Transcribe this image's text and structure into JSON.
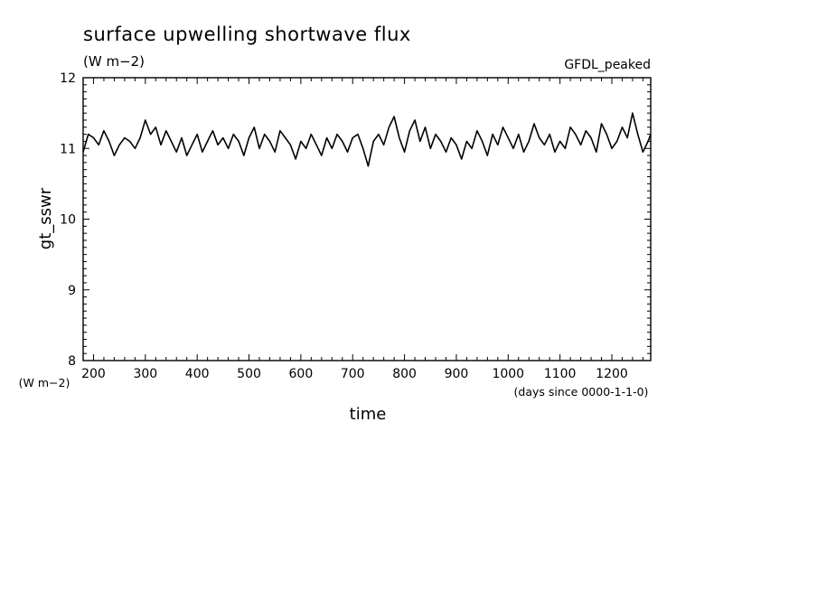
{
  "chart_data": {
    "type": "line",
    "title": "surface upwelling shortwave flux",
    "units": "(W m−2)",
    "dataset": "GFDL_peaked",
    "xlabel": "time",
    "xunits": "(days since 0000-1-1-0)",
    "ylabel": "gt_sswr",
    "yunits": "(W m−2)",
    "xlim": [
      180,
      1275
    ],
    "ylim": [
      8,
      12
    ],
    "x_ticks": [
      200,
      300,
      400,
      500,
      600,
      700,
      800,
      900,
      1000,
      1100,
      1200
    ],
    "y_ticks": [
      8,
      9,
      10,
      11,
      12
    ],
    "grid": false,
    "series": [
      {
        "x": [
          180,
          190,
          200,
          210,
          220,
          230,
          240,
          250,
          260,
          270,
          280,
          290,
          300,
          310,
          320,
          330,
          340,
          350,
          360,
          370,
          380,
          390,
          400,
          410,
          420,
          430,
          440,
          450,
          460,
          470,
          480,
          490,
          500,
          510,
          520,
          530,
          540,
          550,
          560,
          570,
          580,
          590,
          600,
          610,
          620,
          630,
          640,
          650,
          660,
          670,
          680,
          690,
          700,
          710,
          720,
          730,
          740,
          750,
          760,
          770,
          780,
          790,
          800,
          810,
          820,
          830,
          840,
          850,
          860,
          870,
          880,
          890,
          900,
          910,
          920,
          930,
          940,
          950,
          960,
          970,
          980,
          990,
          1000,
          1010,
          1020,
          1030,
          1040,
          1050,
          1060,
          1070,
          1080,
          1090,
          1100,
          1110,
          1120,
          1130,
          1140,
          1150,
          1160,
          1170,
          1180,
          1190,
          1200,
          1210,
          1220,
          1230,
          1240,
          1250,
          1260,
          1270,
          1275
        ],
        "y": [
          10.95,
          11.2,
          11.15,
          11.05,
          11.25,
          11.1,
          10.9,
          11.05,
          11.15,
          11.1,
          11.0,
          11.15,
          11.4,
          11.2,
          11.3,
          11.05,
          11.25,
          11.1,
          10.95,
          11.15,
          10.9,
          11.05,
          11.2,
          10.95,
          11.1,
          11.25,
          11.05,
          11.15,
          11.0,
          11.2,
          11.1,
          10.9,
          11.15,
          11.3,
          11.0,
          11.2,
          11.1,
          10.95,
          11.25,
          11.15,
          11.05,
          10.85,
          11.1,
          11.0,
          11.2,
          11.05,
          10.9,
          11.15,
          11.0,
          11.2,
          11.1,
          10.95,
          11.15,
          11.2,
          11.0,
          10.75,
          11.1,
          11.2,
          11.05,
          11.3,
          11.45,
          11.15,
          10.95,
          11.25,
          11.4,
          11.1,
          11.3,
          11.0,
          11.2,
          11.1,
          10.95,
          11.15,
          11.05,
          10.85,
          11.1,
          11.0,
          11.25,
          11.1,
          10.9,
          11.2,
          11.05,
          11.3,
          11.15,
          11.0,
          11.2,
          10.95,
          11.1,
          11.35,
          11.15,
          11.05,
          11.2,
          10.95,
          11.1,
          11.0,
          11.3,
          11.2,
          11.05,
          11.25,
          11.15,
          10.95,
          11.35,
          11.2,
          11.0,
          11.1,
          11.3,
          11.15,
          11.5,
          11.2,
          10.95,
          11.1,
          11.2
        ]
      }
    ]
  }
}
